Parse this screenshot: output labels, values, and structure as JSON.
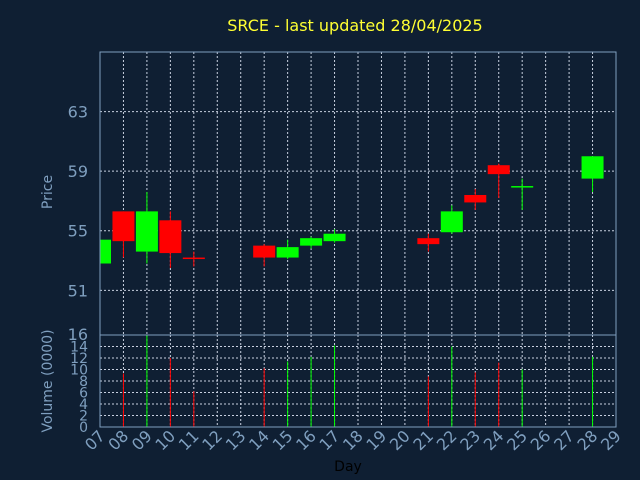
{
  "chart_data": [
    {
      "type": "candlestick",
      "title": "SRCE - last updated 28/04/2025",
      "xlabel": "Day",
      "ylabel": "Price",
      "ylim": [
        48,
        67
      ],
      "yticks": [
        51,
        55,
        59,
        63
      ],
      "xlim": [
        7,
        29
      ],
      "x_ticks": [
        "07",
        "08",
        "09",
        "10",
        "11",
        "12",
        "13",
        "14",
        "15",
        "16",
        "17",
        "18",
        "19",
        "20",
        "21",
        "22",
        "23",
        "24",
        "25",
        "26",
        "27",
        "28",
        "29"
      ],
      "colors": {
        "up": "#00ff00",
        "down": "#ff0000"
      },
      "grid": true,
      "candles": [
        {
          "day": 7,
          "open": 52.8,
          "high": 54.5,
          "low": 52.6,
          "close": 54.4
        },
        {
          "day": 8,
          "open": 56.3,
          "high": 56.3,
          "low": 53.2,
          "close": 54.3
        },
        {
          "day": 9,
          "open": 53.6,
          "high": 57.6,
          "low": 52.8,
          "close": 56.3
        },
        {
          "day": 10,
          "open": 55.7,
          "high": 56.3,
          "low": 52.5,
          "close": 53.5
        },
        {
          "day": 11,
          "open": 53.2,
          "high": 53.6,
          "low": 52.6,
          "close": 53.1
        },
        {
          "day": 14,
          "open": 54.0,
          "high": 54.1,
          "low": 52.6,
          "close": 53.2
        },
        {
          "day": 15,
          "open": 53.2,
          "high": 54.4,
          "low": 53.1,
          "close": 53.9
        },
        {
          "day": 16,
          "open": 54.0,
          "high": 54.6,
          "low": 53.8,
          "close": 54.5
        },
        {
          "day": 17,
          "open": 54.3,
          "high": 55.1,
          "low": 54.2,
          "close": 54.8
        },
        {
          "day": 21,
          "open": 54.5,
          "high": 54.8,
          "low": 53.6,
          "close": 54.1
        },
        {
          "day": 22,
          "open": 54.9,
          "high": 56.7,
          "low": 54.8,
          "close": 56.3
        },
        {
          "day": 23,
          "open": 57.4,
          "high": 57.8,
          "low": 56.4,
          "close": 56.9
        },
        {
          "day": 24,
          "open": 59.4,
          "high": 59.5,
          "low": 57.2,
          "close": 58.8
        },
        {
          "day": 25,
          "open": 57.9,
          "high": 58.5,
          "low": 56.4,
          "close": 58.0
        },
        {
          "day": 28,
          "open": 58.5,
          "high": 60.0,
          "low": 57.6,
          "close": 60.0
        }
      ]
    },
    {
      "type": "bar",
      "ylabel": "Volume (0000)",
      "ylim": [
        0,
        16
      ],
      "yticks": [
        0,
        2,
        4,
        6,
        8,
        10,
        12,
        14,
        16
      ],
      "grid": true,
      "volumes": [
        {
          "day": 8,
          "value": 9.3,
          "direction": "down"
        },
        {
          "day": 9,
          "value": 16.0,
          "direction": "up"
        },
        {
          "day": 10,
          "value": 12.0,
          "direction": "down"
        },
        {
          "day": 11,
          "value": 6.2,
          "direction": "down"
        },
        {
          "day": 14,
          "value": 10.2,
          "direction": "down"
        },
        {
          "day": 15,
          "value": 11.4,
          "direction": "up"
        },
        {
          "day": 16,
          "value": 12.2,
          "direction": "up"
        },
        {
          "day": 17,
          "value": 14.2,
          "direction": "up"
        },
        {
          "day": 21,
          "value": 8.8,
          "direction": "down"
        },
        {
          "day": 22,
          "value": 14.0,
          "direction": "up"
        },
        {
          "day": 23,
          "value": 9.5,
          "direction": "down"
        },
        {
          "day": 24,
          "value": 11.2,
          "direction": "down"
        },
        {
          "day": 25,
          "value": 10.0,
          "direction": "up"
        },
        {
          "day": 28,
          "value": 12.2,
          "direction": "up"
        }
      ]
    }
  ]
}
